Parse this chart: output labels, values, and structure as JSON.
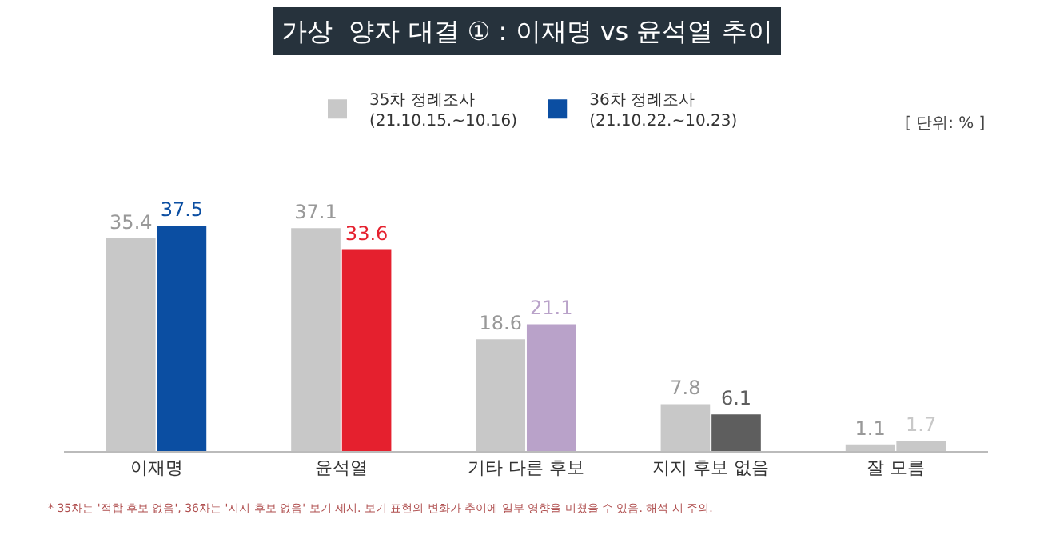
{
  "chart_data": {
    "type": "bar",
    "title": "가상  양자 대결 ① : 이재명 vs 윤석열 추이",
    "categories": [
      "이재명",
      "윤석열",
      "기타 다른 후보",
      "지지 후보 없음",
      "잘 모름"
    ],
    "series": [
      {
        "name": "35차 정례조사\n(21.10.15.~10.16)",
        "colors": [
          "#c8c8c8",
          "#c8c8c8",
          "#c8c8c8",
          "#c8c8c8",
          "#c8c8c8"
        ],
        "values": [
          35.4,
          37.1,
          18.6,
          7.8,
          1.1
        ]
      },
      {
        "name": "36차 정례조사\n(21.10.22.~10.23)",
        "colors": [
          "#0b4ea2",
          "#e5202e",
          "#b9a2c9",
          "#5e5e5e",
          "#c8c8c8"
        ],
        "values": [
          37.5,
          33.6,
          21.1,
          6.1,
          1.7
        ]
      }
    ],
    "data_labels": true,
    "legend": "top",
    "grid": false,
    "annotations": [
      "[ 단위: % ]",
      "* 35차는 '적합 후보 없음', 36차는 '지지 후보 없음' 보기 제시. 보기 표현의 변화가 추이에 일부 영향을 미쳤을 수 있음. 해석 시 주의."
    ]
  }
}
